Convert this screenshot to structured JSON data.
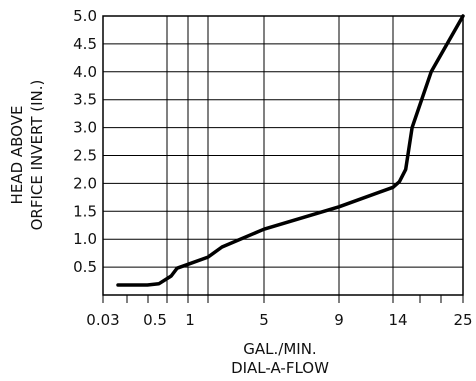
{
  "chart_data": {
    "type": "line",
    "title": "",
    "xlabel": [
      "GAL./MIN.",
      "DIAL-A-FLOW"
    ],
    "ylabel": [
      "HEAD ABOVE",
      "ORFICE INVERT (IN.)"
    ],
    "x_tick_labels": [
      "0.03",
      "0.5",
      "1",
      "5",
      "9",
      "14",
      "25"
    ],
    "x_tick_values": [
      0.03,
      0.5,
      1,
      5,
      9,
      14,
      25
    ],
    "x_gridlines": [
      0.03,
      0.5,
      0.75,
      1,
      2,
      5,
      9,
      14,
      25
    ],
    "y_ticks": [
      0.5,
      1.0,
      1.5,
      2.0,
      2.5,
      3.0,
      3.5,
      4.0,
      4.5,
      5.0
    ],
    "y_tick_labels": [
      "0.5",
      "1.0",
      "1.5",
      "2.0",
      "2.5",
      "3.0",
      "3.5",
      "4.0",
      "4.5",
      "5.0"
    ],
    "ylim": [
      0,
      5.0
    ],
    "grid": true,
    "series": [
      {
        "x": [
          0.2,
          0.38,
          0.45,
          0.55,
          0.62,
          0.75,
          1,
          2,
          5,
          9,
          14,
          15,
          16,
          17,
          20,
          25
        ],
        "y": [
          0.18,
          0.18,
          0.2,
          0.34,
          0.48,
          0.55,
          0.68,
          0.86,
          1.18,
          1.58,
          1.93,
          2.03,
          2.25,
          3.0,
          4.0,
          5.0
        ]
      }
    ],
    "colors": {
      "line": "#000000",
      "grid": "#000000"
    }
  }
}
